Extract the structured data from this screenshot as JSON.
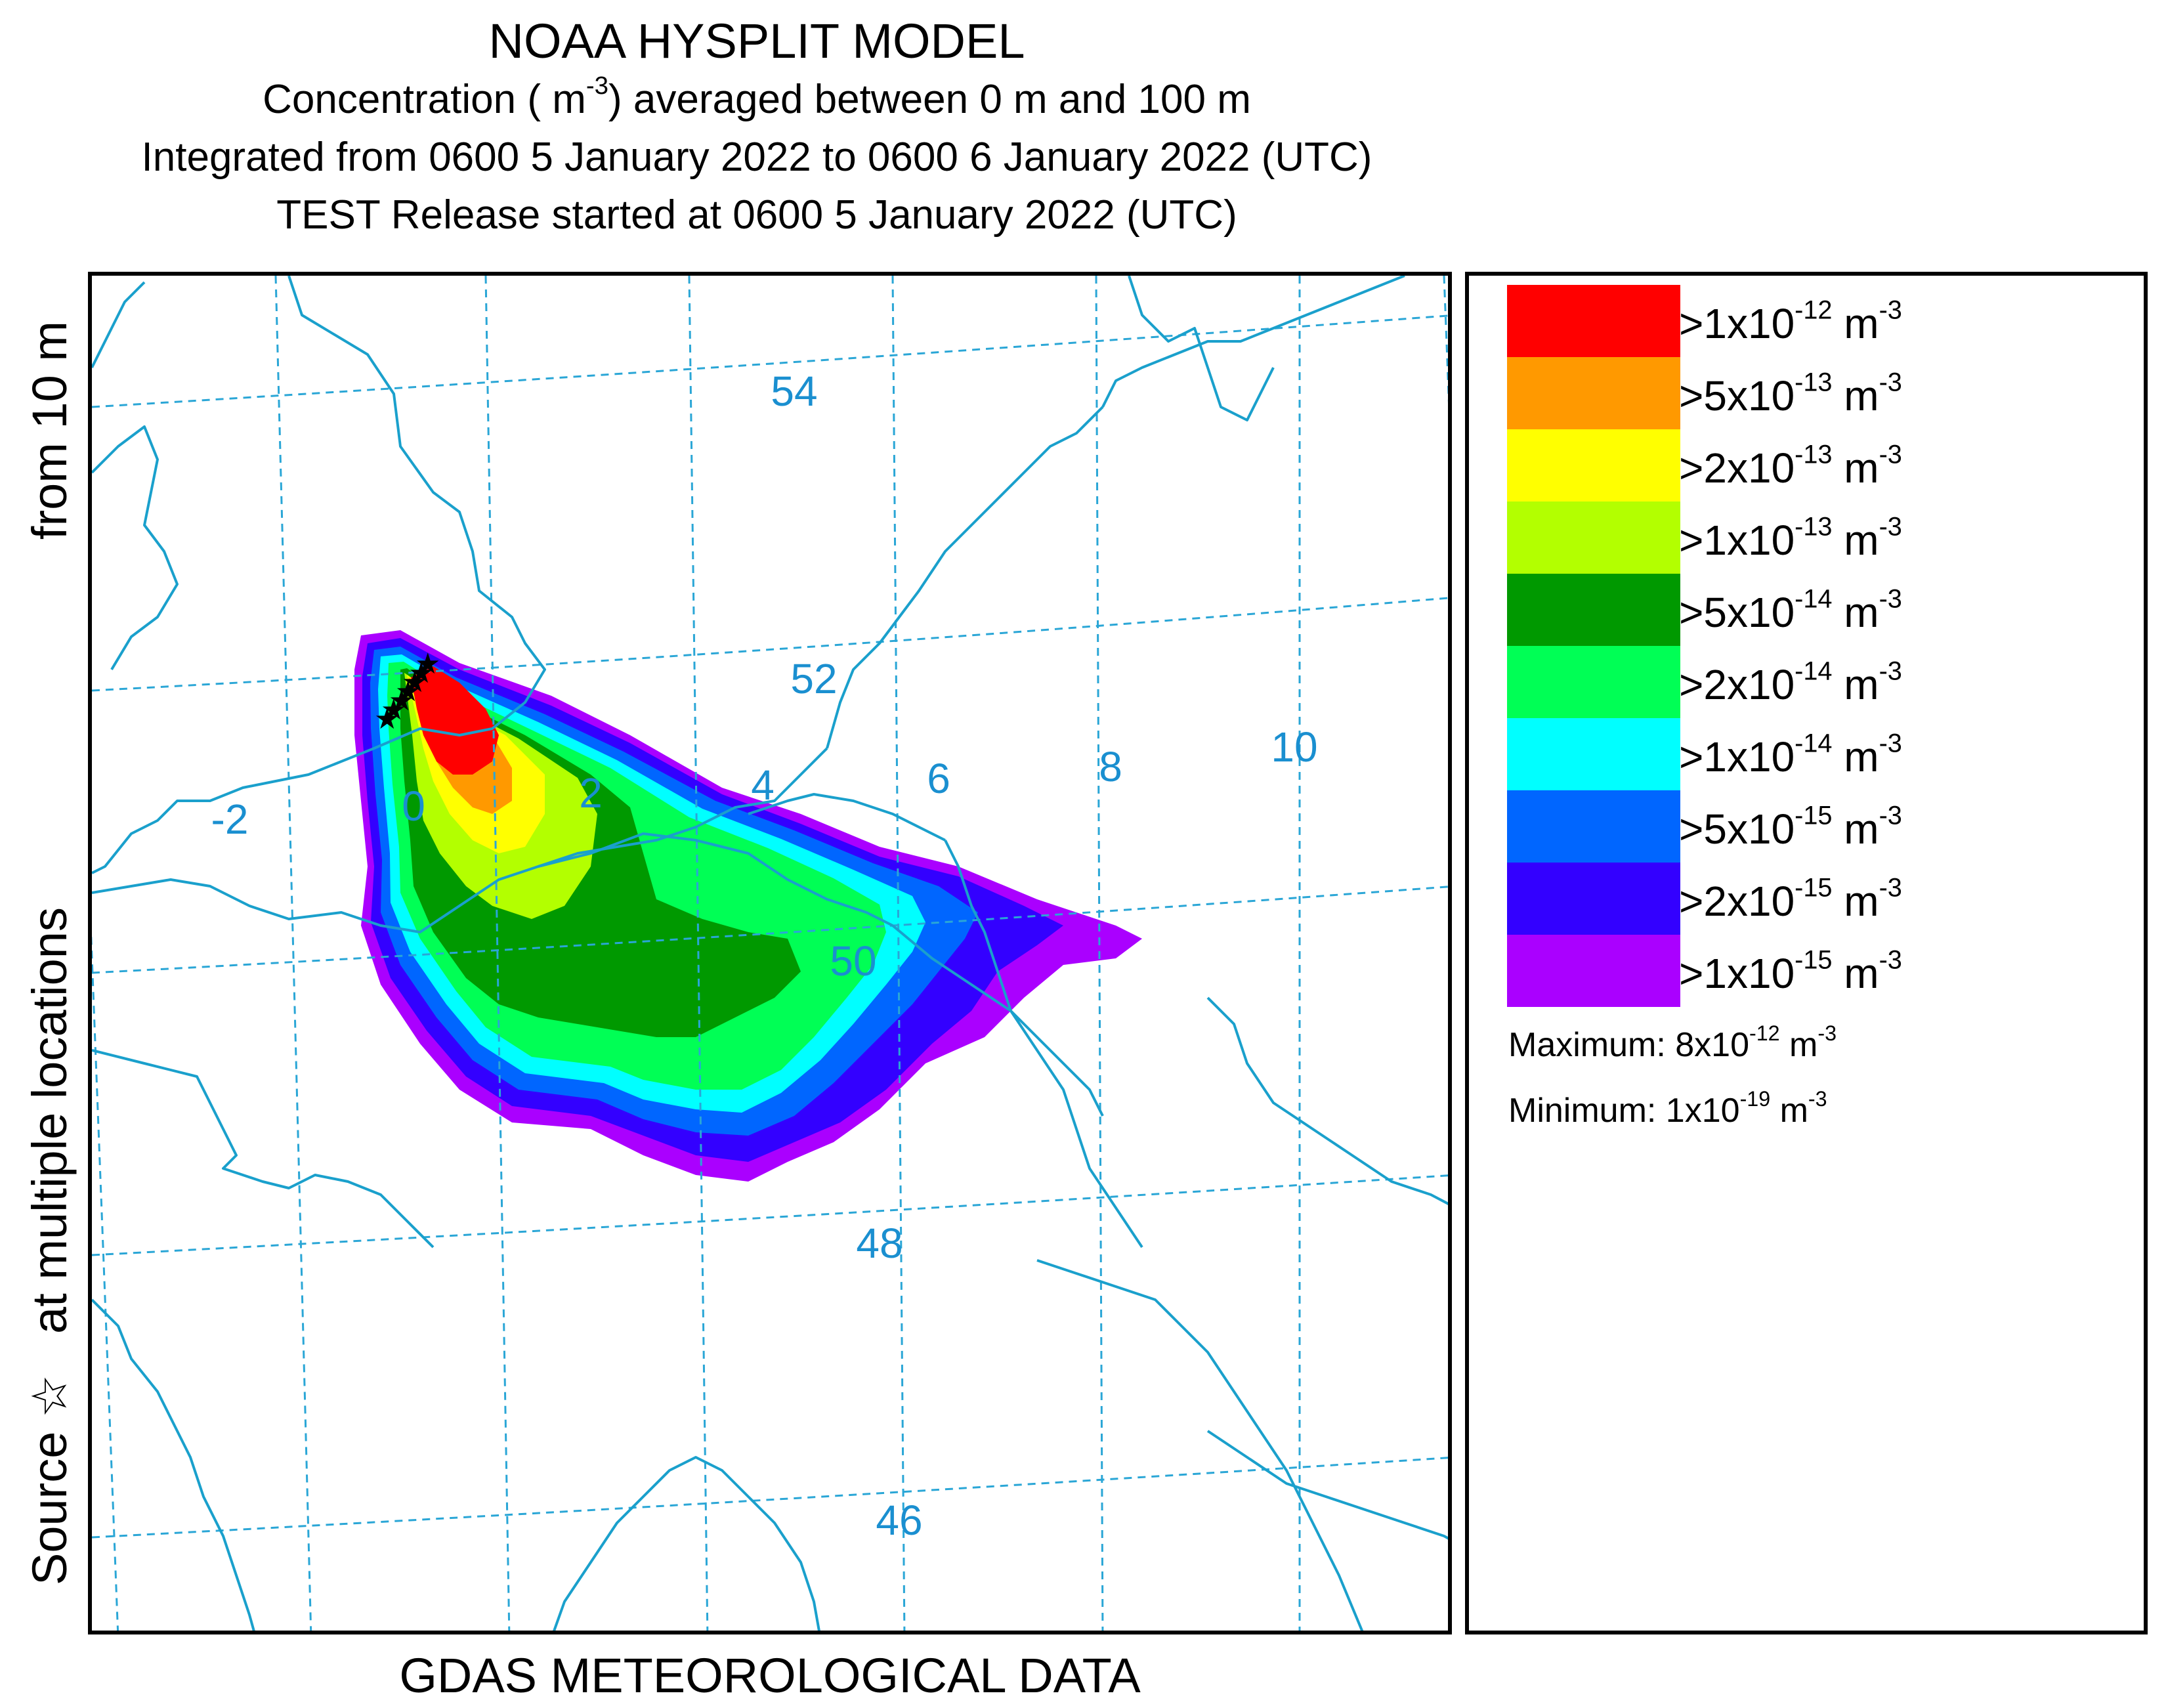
{
  "header": {
    "title": "NOAA HYSPLIT MODEL",
    "conc_prefix": "Concentration (",
    "conc_unit": "m",
    "conc_exp": "-3",
    "conc_suffix": ") averaged between 0 m and 100 m",
    "integrated": "Integrated from 0600 5 January 2022 to 0600 6 January 2022 (UTC)",
    "release": "TEST Release started at 0600 5 January 2022 (UTC)"
  },
  "side_label": {
    "source": "Source",
    "star": "☆",
    "locations": "at multiple locations",
    "height": "from 10 m"
  },
  "footer": {
    "text": "GDAS METEOROLOGICAL DATA"
  },
  "map": {
    "latitude_labels": [
      "54",
      "52",
      "50",
      "48",
      "46"
    ],
    "longitude_labels": [
      "-2",
      "0",
      "2",
      "4",
      "6",
      "8",
      "10"
    ],
    "colors": {
      "coastline": "#1aa0cc",
      "graticule": "#2aa6d6",
      "label": "#1a8fd0"
    }
  },
  "legend": {
    "levels": [
      {
        "color": "#ff0000",
        "base": ">1x10",
        "exp": "-12",
        "unit": " m",
        "unit_exp": "-3"
      },
      {
        "color": "#ff9900",
        "base": ">5x10",
        "exp": "-13",
        "unit": " m",
        "unit_exp": "-3"
      },
      {
        "color": "#ffff00",
        "base": ">2x10",
        "exp": "-13",
        "unit": " m",
        "unit_exp": "-3"
      },
      {
        "color": "#b3ff00",
        "base": ">1x10",
        "exp": "-13",
        "unit": " m",
        "unit_exp": "-3"
      },
      {
        "color": "#009900",
        "base": ">5x10",
        "exp": "-14",
        "unit": " m",
        "unit_exp": "-3"
      },
      {
        "color": "#00ff55",
        "base": ">2x10",
        "exp": "-14",
        "unit": " m",
        "unit_exp": "-3"
      },
      {
        "color": "#00ffff",
        "base": ">1x10",
        "exp": "-14",
        "unit": " m",
        "unit_exp": "-3"
      },
      {
        "color": "#0066ff",
        "base": ">5x10",
        "exp": "-15",
        "unit": " m",
        "unit_exp": "-3"
      },
      {
        "color": "#3300ff",
        "base": ">2x10",
        "exp": "-15",
        "unit": " m",
        "unit_exp": "-3"
      },
      {
        "color": "#aa00ff",
        "base": ">1x10",
        "exp": "-15",
        "unit": " m",
        "unit_exp": "-3"
      }
    ],
    "maximum": {
      "label": "Maximum: 8x10",
      "exp": "-12",
      "unit": " m",
      "unit_exp": "-3"
    },
    "minimum": {
      "label": "Minimum: 1x10",
      "exp": "-19",
      "unit": " m",
      "unit_exp": "-3"
    }
  }
}
